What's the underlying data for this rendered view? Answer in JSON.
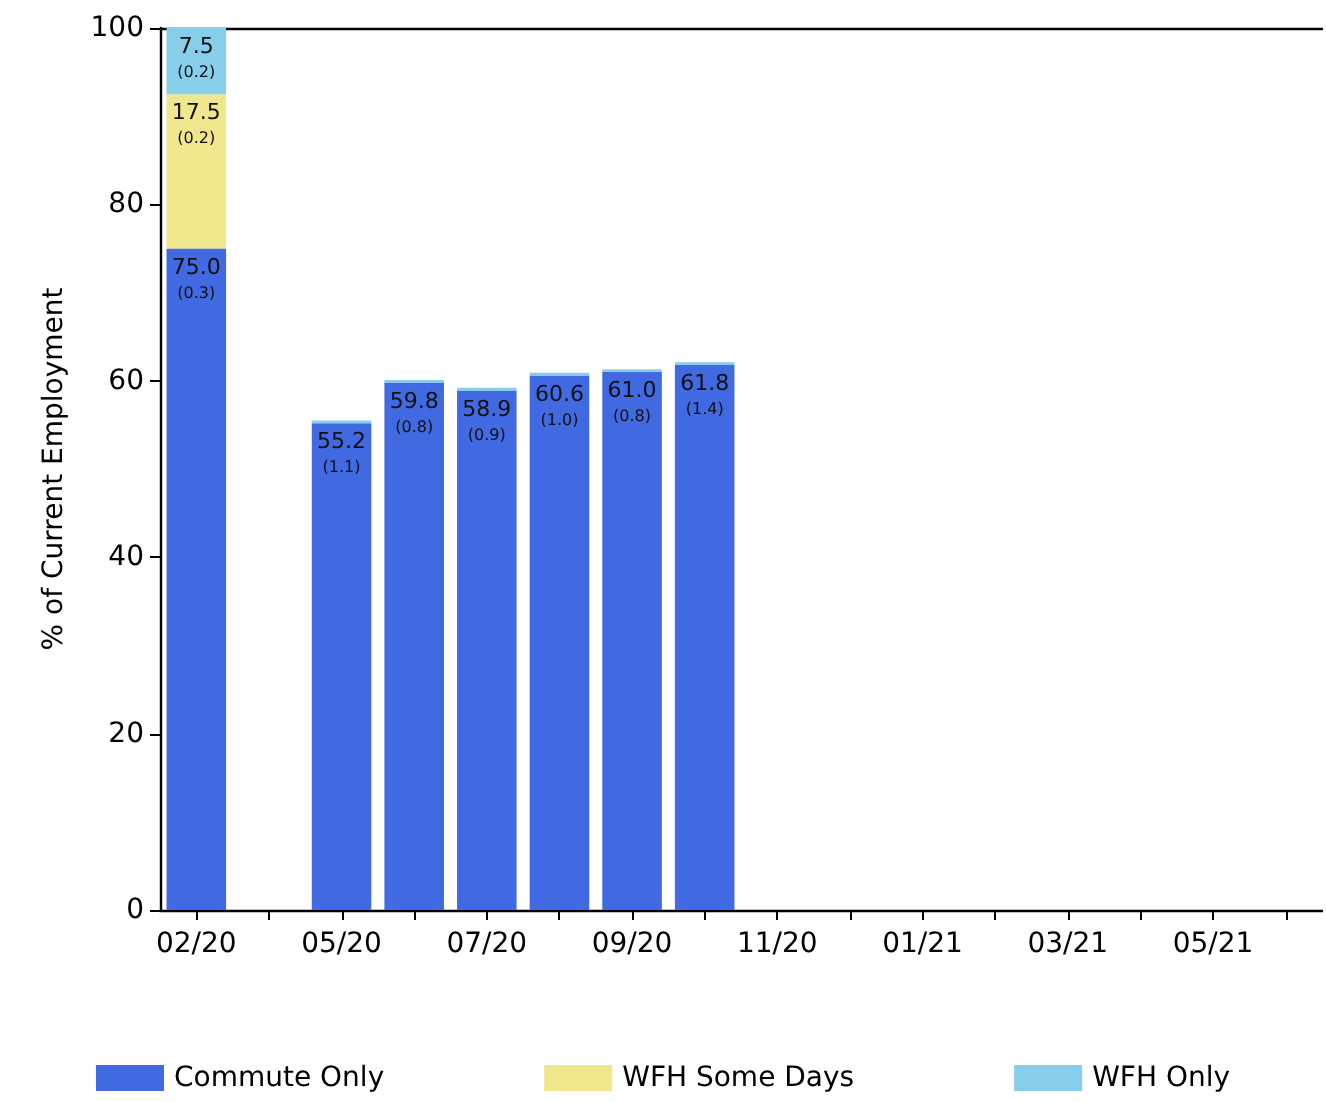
{
  "chart_data": {
    "type": "bar",
    "ylabel": "% of Current Employment",
    "categories": [
      "02/20",
      null,
      "05/20",
      null,
      "07/20",
      null,
      "09/20",
      null,
      "11/20",
      null,
      "01/21",
      null,
      "03/21",
      null,
      "05/21",
      null
    ],
    "stacked": true,
    "ylim": [
      0,
      100
    ],
    "yticks": [
      0,
      20,
      40,
      60,
      80,
      100
    ],
    "grid": false,
    "legend": "bottom",
    "series": [
      {
        "name": "Commute Only",
        "color": "#4169e1",
        "values": [
          75.0,
          null,
          55.2,
          59.8,
          58.9,
          60.6,
          61.0,
          61.8,
          null,
          null,
          null,
          null,
          null,
          null,
          null,
          null
        ],
        "value_labels": [
          "75.0\n(0.3)",
          null,
          "55.2\n(1.1)",
          "59.8\n(0.8)",
          "58.9\n(0.9)",
          "60.6\n(1.0)",
          "61.0\n(0.8)",
          "61.8\n(1.4)",
          null,
          null,
          null,
          null,
          null,
          null,
          null,
          null
        ]
      },
      {
        "name": "WFH Some Days",
        "color": "#f0e68c",
        "values": [
          17.5,
          null,
          null,
          null,
          null,
          null,
          null,
          null,
          null,
          null,
          null,
          null,
          null,
          null,
          null,
          null
        ],
        "value_labels": [
          "17.5\n(0.2)",
          null,
          null,
          null,
          null,
          null,
          null,
          null,
          null,
          null,
          null,
          null,
          null,
          null,
          null,
          null
        ]
      },
      {
        "name": "WFH Only",
        "color": "#87ceeb",
        "values": [
          7.5,
          null,
          0.3,
          0.3,
          0.3,
          0.3,
          0.3,
          0.3,
          null,
          null,
          null,
          null,
          null,
          null,
          null,
          null
        ],
        "value_labels": [
          "7.5\n(0.2)",
          null,
          null,
          null,
          null,
          null,
          null,
          null,
          null,
          null,
          null,
          null,
          null,
          null,
          null,
          null
        ]
      }
    ]
  }
}
